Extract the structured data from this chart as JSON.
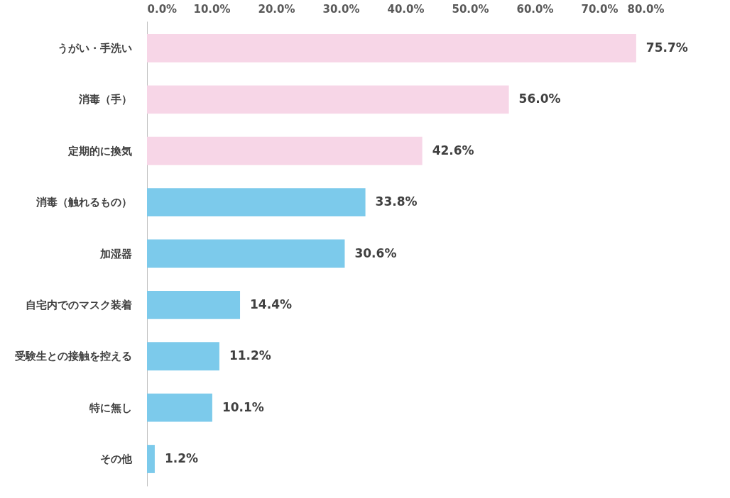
{
  "chart_data": {
    "type": "bar",
    "orientation": "horizontal",
    "categories": [
      "うがい・手洗い",
      "消毒（手）",
      "定期的に換気",
      "消毒（触れるもの）",
      "加湿器",
      "自宅内でのマスク装着",
      "受験生との接触を控える",
      "特に無し",
      "その他"
    ],
    "values": [
      75.7,
      56.0,
      42.6,
      33.8,
      30.6,
      14.4,
      11.2,
      10.1,
      1.2
    ],
    "colors": [
      "#f7d6e7",
      "#f7d6e7",
      "#f7d6e7",
      "#7ccaeb",
      "#7ccaeb",
      "#7ccaeb",
      "#7ccaeb",
      "#7ccaeb",
      "#7ccaeb"
    ],
    "value_labels": [
      "75.7%",
      "56.0%",
      "42.6%",
      "33.8%",
      "30.6%",
      "14.4%",
      "11.2%",
      "10.1%",
      "1.2%"
    ],
    "xlim": [
      0,
      80
    ],
    "xticks": [
      {
        "value": 0,
        "label": "0.0%"
      },
      {
        "value": 10,
        "label": "10.0%"
      },
      {
        "value": 20,
        "label": "20.0%"
      },
      {
        "value": 30,
        "label": "30.0%"
      },
      {
        "value": 40,
        "label": "40.0%"
      },
      {
        "value": 50,
        "label": "50.0%"
      },
      {
        "value": 60,
        "label": "60.0%"
      },
      {
        "value": 70,
        "label": "70.0%"
      },
      {
        "value": 80,
        "label": "80.0%"
      }
    ],
    "grid": false
  }
}
